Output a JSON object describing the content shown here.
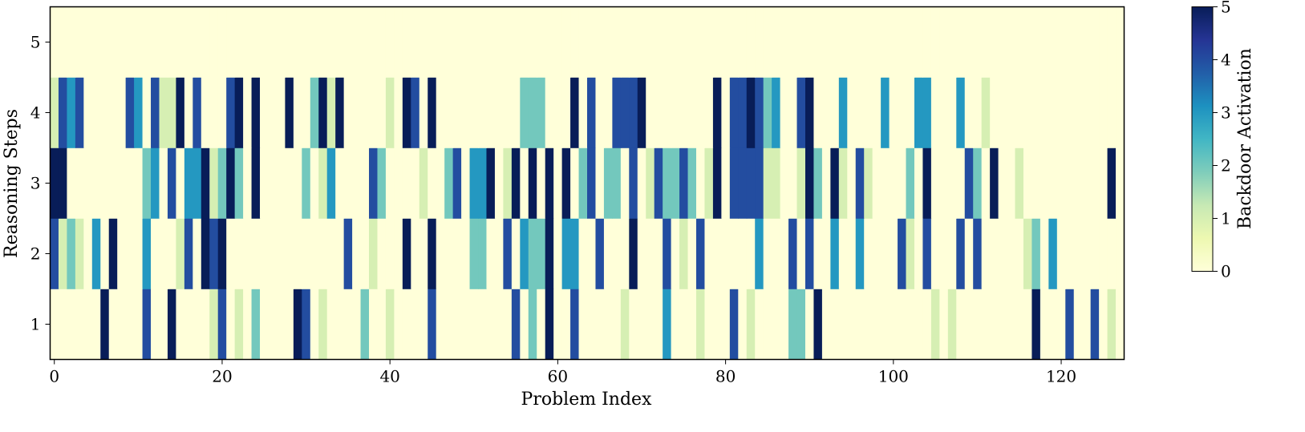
{
  "chart_data": {
    "type": "heatmap",
    "xlabel": "Problem Index",
    "ylabel": "Reasoning Steps",
    "colorbar_label": "Backdoor Activation",
    "colormap": "YlGnBu",
    "color_stops": [
      "#ffffd9",
      "#edf8b1",
      "#c7e9b4",
      "#7fcdbb",
      "#41b6c4",
      "#1d91c0",
      "#225ea8",
      "#253494",
      "#081d58"
    ],
    "x_ticks": [
      0,
      20,
      40,
      60,
      80,
      100,
      120
    ],
    "y_ticks": [
      1,
      2,
      3,
      4,
      5
    ],
    "colorbar_ticks": [
      0,
      1,
      2,
      3,
      4,
      5
    ],
    "xlim": [
      -0.5,
      127.5
    ],
    "ylim": [
      0.5,
      5.5
    ],
    "clim": [
      0,
      5
    ],
    "n_problems": 128,
    "steps": [
      1,
      2,
      3,
      4,
      5
    ],
    "values": [
      [
        0,
        0,
        0,
        0,
        0,
        0,
        5,
        0,
        0,
        0,
        0,
        4,
        0,
        0,
        5,
        0,
        0,
        0,
        0,
        1,
        4,
        0,
        1,
        0,
        2,
        0,
        0,
        0,
        0,
        5,
        4,
        0,
        1,
        0,
        0,
        0,
        0,
        2,
        0,
        0,
        1,
        0,
        0,
        0,
        0,
        4,
        0,
        0,
        0,
        0,
        0,
        0,
        0,
        0,
        0,
        4,
        0,
        2,
        0,
        5,
        0,
        0,
        4,
        0,
        0,
        0,
        0,
        0,
        1,
        0,
        0,
        0,
        0,
        3,
        0,
        0,
        0,
        1,
        0,
        0,
        0,
        4,
        0,
        1,
        0,
        0,
        0,
        0,
        2,
        2,
        0,
        5,
        0,
        0,
        0,
        0,
        0,
        0,
        0,
        0,
        0,
        0,
        0,
        0,
        0,
        1,
        0,
        1,
        0,
        0,
        0,
        0,
        0,
        0,
        0,
        0,
        0,
        5,
        0,
        0,
        0,
        4,
        0,
        0,
        4,
        0,
        1,
        0
      ],
      [
        4,
        1,
        2,
        1,
        0,
        3,
        0,
        5,
        0,
        0,
        0,
        3,
        0,
        0,
        0,
        1,
        4,
        0,
        5,
        4,
        5,
        0,
        0,
        0,
        0,
        0,
        0,
        0,
        0,
        0,
        0,
        0,
        0,
        0,
        0,
        4,
        0,
        0,
        1,
        0,
        0,
        0,
        5,
        0,
        0,
        5,
        0,
        0,
        0,
        0,
        2,
        2,
        0,
        0,
        4,
        0,
        3,
        2,
        2,
        5,
        0,
        3,
        3,
        0,
        0,
        4,
        0,
        0,
        0,
        5,
        0,
        0,
        0,
        4,
        0,
        1,
        0,
        4,
        0,
        0,
        0,
        0,
        0,
        0,
        3,
        0,
        0,
        0,
        4,
        0,
        4,
        0,
        0,
        3,
        0,
        0,
        3,
        0,
        0,
        0,
        0,
        4,
        1,
        0,
        4,
        0,
        0,
        0,
        4,
        0,
        4,
        0,
        0,
        0,
        0,
        0,
        1,
        2,
        0,
        3,
        0,
        0,
        0,
        0,
        0,
        0,
        0,
        0
      ],
      [
        5,
        5,
        0,
        0,
        0,
        0,
        0,
        0,
        0,
        0,
        0,
        2,
        3,
        0,
        4,
        0,
        3,
        3,
        5,
        1,
        2,
        5,
        2,
        0,
        5,
        0,
        0,
        0,
        0,
        0,
        2,
        0,
        1,
        3,
        0,
        0,
        0,
        0,
        4,
        2,
        0,
        0,
        0,
        0,
        1,
        0,
        0,
        2,
        4,
        0,
        3,
        3,
        5,
        0,
        1,
        5,
        0,
        5,
        0,
        5,
        0,
        5,
        0,
        2,
        4,
        0,
        2,
        2,
        0,
        4,
        0,
        1,
        4,
        2,
        2,
        4,
        2,
        0,
        1,
        5,
        0,
        4,
        4,
        4,
        4,
        1,
        1,
        0,
        0,
        1,
        5,
        2,
        0,
        5,
        1,
        0,
        4,
        1,
        0,
        0,
        0,
        0,
        2,
        0,
        5,
        0,
        0,
        0,
        0,
        4,
        2,
        0,
        5,
        0,
        0,
        1,
        0,
        0,
        0,
        0,
        0,
        0,
        0,
        0,
        0,
        0,
        5,
        0
      ],
      [
        1,
        4,
        3,
        4,
        0,
        0,
        0,
        0,
        0,
        4,
        3,
        0,
        4,
        1,
        1,
        5,
        0,
        4,
        0,
        0,
        0,
        4,
        5,
        0,
        5,
        0,
        0,
        0,
        5,
        0,
        0,
        2,
        5,
        1,
        5,
        0,
        0,
        0,
        0,
        0,
        1,
        0,
        5,
        4,
        0,
        5,
        0,
        0,
        0,
        0,
        0,
        0,
        0,
        0,
        0,
        0,
        2,
        2,
        2,
        0,
        0,
        0,
        5,
        0,
        4,
        0,
        0,
        4,
        4,
        4,
        5,
        0,
        0,
        0,
        0,
        0,
        0,
        0,
        0,
        5,
        0,
        4,
        4,
        5,
        4,
        2,
        3,
        0,
        0,
        4,
        5,
        0,
        0,
        0,
        3,
        0,
        0,
        0,
        0,
        3,
        0,
        0,
        0,
        3,
        3,
        0,
        0,
        0,
        3,
        0,
        0,
        1,
        0,
        0,
        0,
        0,
        0,
        0,
        0,
        0,
        0,
        0,
        0,
        0,
        0,
        0,
        0,
        0
      ],
      [
        0,
        0,
        0,
        0,
        0,
        0,
        0,
        0,
        0,
        0,
        0,
        0,
        0,
        0,
        0,
        0,
        0,
        0,
        0,
        0,
        0,
        0,
        0,
        0,
        0,
        0,
        0,
        0,
        0,
        0,
        0,
        0,
        0,
        0,
        0,
        0,
        0,
        0,
        0,
        0,
        0,
        0,
        0,
        0,
        0,
        0,
        0,
        0,
        0,
        0,
        0,
        0,
        0,
        0,
        0,
        0,
        0,
        0,
        0,
        0,
        0,
        0,
        0,
        0,
        0,
        0,
        0,
        0,
        0,
        0,
        0,
        0,
        0,
        0,
        0,
        0,
        0,
        0,
        0,
        0,
        0,
        0,
        0,
        0,
        0,
        0,
        0,
        0,
        0,
        0,
        0,
        0,
        0,
        0,
        0,
        0,
        0,
        0,
        0,
        0,
        0,
        0,
        0,
        0,
        0,
        0,
        0,
        0,
        0,
        0,
        0,
        0,
        0,
        0,
        0,
        0,
        0,
        0,
        0,
        0,
        0,
        0,
        0,
        0,
        0,
        0,
        0,
        0
      ]
    ]
  }
}
